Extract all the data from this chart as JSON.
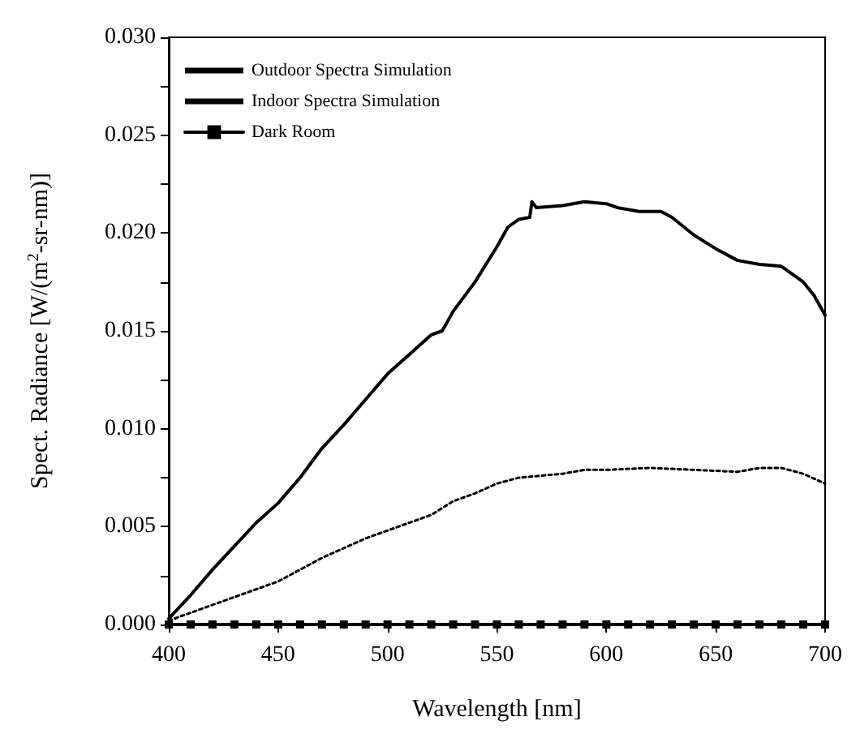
{
  "chart_data": {
    "type": "line",
    "xlabel": "Wavelength [nm]",
    "ylabel": "Spect. Radiance [W/(m$^{2}$-sr-nm)]",
    "xlim": [
      400,
      700
    ],
    "xticks": [
      400,
      450,
      500,
      550,
      600,
      650,
      700
    ],
    "ylim": [
      0,
      0.03
    ],
    "yticks": [
      {
        "value": 0,
        "label": "0.000"
      },
      {
        "value": 0.0025,
        "label": null
      },
      {
        "value": 0.005,
        "label": "0.005"
      },
      {
        "value": 0.0075,
        "label": null
      },
      {
        "value": 0.01,
        "label": "0.010"
      },
      {
        "value": 0.0125,
        "label": null
      },
      {
        "value": 0.015,
        "label": "0.015"
      },
      {
        "value": 0.0175,
        "label": null
      },
      {
        "value": 0.02,
        "label": "0.020"
      },
      {
        "value": 0.0225,
        "label": null
      },
      {
        "value": 0.025,
        "label": "0.025"
      },
      {
        "value": 0.0275,
        "label": null
      },
      {
        "value": 0.03,
        "label": "0.030"
      }
    ],
    "grid": false,
    "legend": "top left",
    "marker": "none",
    "series": [
      {
        "name": "Outdoor Spectra Simulation",
        "color": "#000000",
        "line_style": "solid",
        "x": [
          400,
          410,
          420,
          430,
          440,
          450,
          460,
          470,
          480,
          490,
          500,
          510,
          520,
          525,
          530,
          540,
          550,
          555,
          560,
          565,
          566,
          568,
          580,
          590,
          600,
          605,
          615,
          625,
          630,
          640,
          650,
          660,
          670,
          680,
          690,
          695,
          700
        ],
        "values": [
          0.0003,
          0.0015,
          0.0028,
          0.004,
          0.0052,
          0.0062,
          0.0075,
          0.009,
          0.0102,
          0.0115,
          0.0128,
          0.0138,
          0.0148,
          0.015,
          0.016,
          0.0175,
          0.0193,
          0.0203,
          0.0207,
          0.0208,
          0.0216,
          0.0213,
          0.0214,
          0.0216,
          0.0215,
          0.0213,
          0.0211,
          0.0211,
          0.0208,
          0.0199,
          0.0192,
          0.0186,
          0.0184,
          0.0183,
          0.0175,
          0.0168,
          0.0158
        ]
      },
      {
        "name": "Indoor Spectra Simulation",
        "color": "#000000",
        "line_style": "dotted",
        "x": [
          400,
          410,
          420,
          430,
          440,
          450,
          460,
          470,
          480,
          490,
          500,
          510,
          520,
          530,
          540,
          550,
          560,
          570,
          580,
          590,
          600,
          620,
          640,
          660,
          670,
          680,
          690,
          700
        ],
        "values": [
          0.0002,
          0.0006,
          0.001,
          0.0014,
          0.0018,
          0.0022,
          0.0028,
          0.0034,
          0.0039,
          0.0044,
          0.0048,
          0.0052,
          0.0056,
          0.0063,
          0.0067,
          0.0072,
          0.0075,
          0.0076,
          0.0077,
          0.0079,
          0.0079,
          0.008,
          0.0079,
          0.0078,
          0.008,
          0.008,
          0.0077,
          0.0072
        ]
      },
      {
        "name": "Dark Room",
        "color": "#000000",
        "line_style": "solid",
        "marker": "square",
        "x": [
          400,
          410,
          420,
          430,
          440,
          450,
          460,
          470,
          480,
          490,
          500,
          510,
          520,
          530,
          540,
          550,
          560,
          570,
          580,
          590,
          600,
          610,
          620,
          630,
          640,
          650,
          660,
          670,
          680,
          690,
          700
        ],
        "values": [
          0,
          0,
          0,
          0,
          0,
          0,
          0,
          0,
          0,
          0,
          0,
          0,
          0,
          0,
          0,
          0,
          0,
          0,
          0,
          0,
          0,
          0,
          0,
          0,
          0,
          0,
          0,
          0,
          0,
          0,
          0
        ]
      }
    ]
  }
}
